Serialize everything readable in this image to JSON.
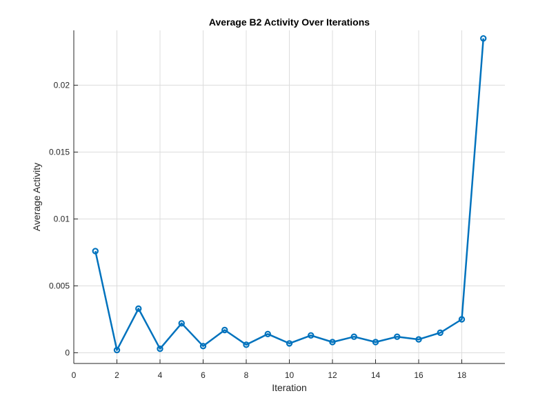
{
  "chart_data": {
    "type": "line",
    "title": "Average B2 Activity Over Iterations",
    "xlabel": "Iteration",
    "ylabel": "Average Activity",
    "xlim": [
      0,
      20
    ],
    "ylim": [
      -0.0008,
      0.0241
    ],
    "x_ticks": [
      0,
      2,
      4,
      6,
      8,
      10,
      12,
      14,
      16,
      18
    ],
    "x_tick_labels": [
      "0",
      "2",
      "4",
      "6",
      "8",
      "10",
      "12",
      "14",
      "16",
      "18"
    ],
    "y_ticks": [
      0,
      0.005,
      0.01,
      0.015,
      0.02
    ],
    "y_tick_labels": [
      "0",
      "0.005",
      "0.01",
      "0.015",
      "0.02"
    ],
    "grid": true,
    "marker": "circle",
    "color": "#0072bd",
    "series": [
      {
        "x": [
          1,
          2,
          3,
          4,
          5,
          6,
          7,
          8,
          9,
          10,
          11,
          12,
          13,
          14,
          15,
          16,
          17,
          18,
          19
        ],
        "values": [
          0.0076,
          0.0002,
          0.0033,
          0.0003,
          0.0022,
          0.0005,
          0.0017,
          0.0006,
          0.0014,
          0.0007,
          0.0013,
          0.0008,
          0.0012,
          0.0008,
          0.0012,
          0.001,
          0.0015,
          0.0025,
          0.0235
        ]
      }
    ]
  }
}
